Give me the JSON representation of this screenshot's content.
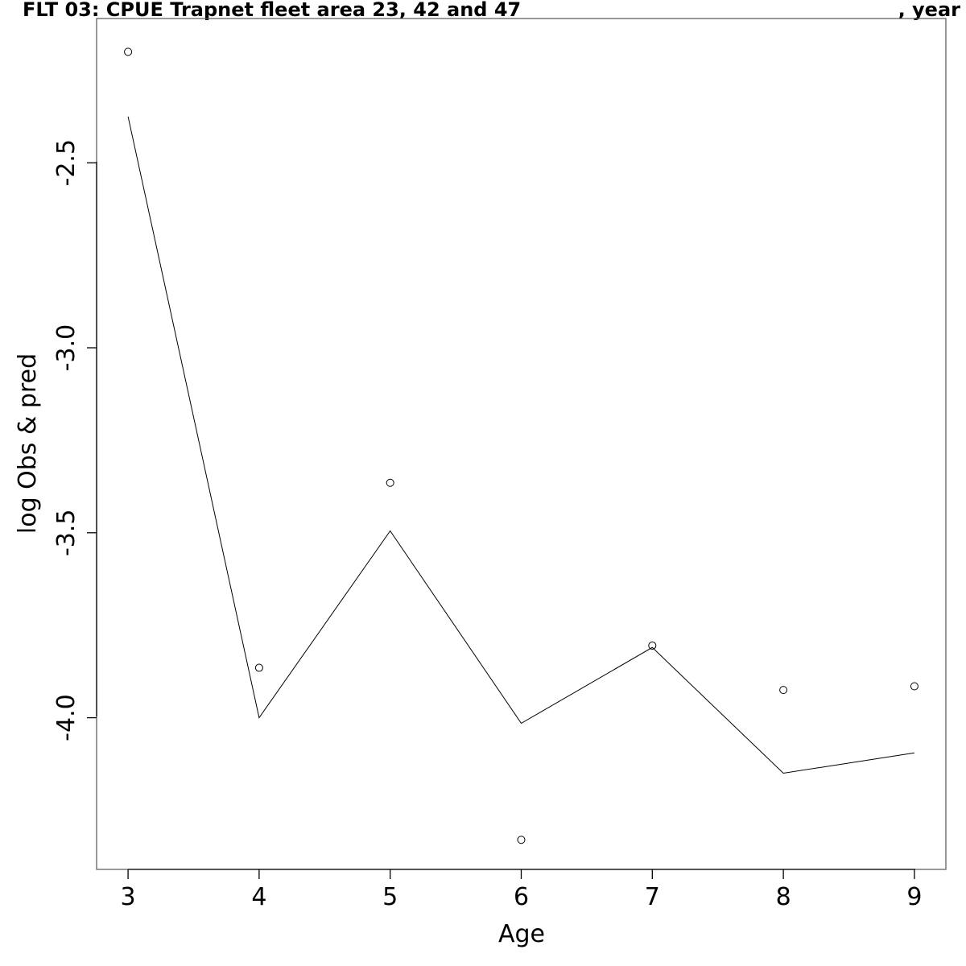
{
  "chart_data": {
    "type": "line",
    "title_left": "FLT 03: CPUE Trapnet fleet area 23, 42 and 47",
    "title_right": ", year",
    "xlabel": "Age",
    "ylabel": "log Obs & pred",
    "x": [
      3,
      4,
      5,
      6,
      7,
      8,
      9
    ],
    "xlim": [
      2.76,
      9.24
    ],
    "ylim": [
      -4.41,
      -2.11
    ],
    "xticks": [
      3,
      4,
      5,
      6,
      7,
      8,
      9
    ],
    "xtick_labels": [
      "3",
      "4",
      "5",
      "6",
      "7",
      "8",
      "9"
    ],
    "yticks": [
      -4.0,
      -3.5,
      -3.0,
      -2.5
    ],
    "ytick_labels": [
      "-4.0",
      "-3.5",
      "-3.0",
      "-2.5"
    ],
    "series": [
      {
        "type": "scatter",
        "marker": "open-circle",
        "values": [
          -2.2,
          -3.865,
          -3.365,
          -4.33,
          -3.805,
          -3.925,
          -3.915
        ]
      },
      {
        "type": "line",
        "values": [
          -2.375,
          -4.0,
          -3.495,
          -4.015,
          -3.81,
          -4.15,
          -4.095
        ]
      }
    ],
    "grid": false,
    "legend": "none"
  }
}
